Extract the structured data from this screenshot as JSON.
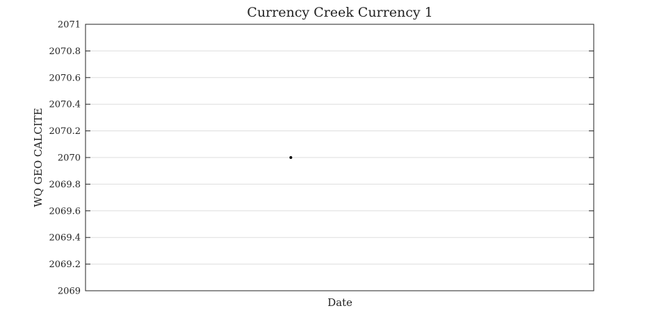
{
  "chart_data": {
    "type": "scatter",
    "title": "Currency Creek Currency 1",
    "xlabel": "Date",
    "ylabel": "WQ GEO CALCITE",
    "ylim": [
      2069,
      2071
    ],
    "y_ticks": [
      "2069",
      "2069.2",
      "2069.4",
      "2069.6",
      "2069.8",
      "2070",
      "2070.2",
      "2070.4",
      "2070.6",
      "2070.8",
      "2071"
    ],
    "x_ticks": [],
    "grid": true,
    "series": [
      {
        "points": [
          {
            "y": 2070
          }
        ]
      }
    ],
    "colors": {
      "marker": "#000000",
      "grid": "#dddddd",
      "frame": "#222222"
    }
  }
}
